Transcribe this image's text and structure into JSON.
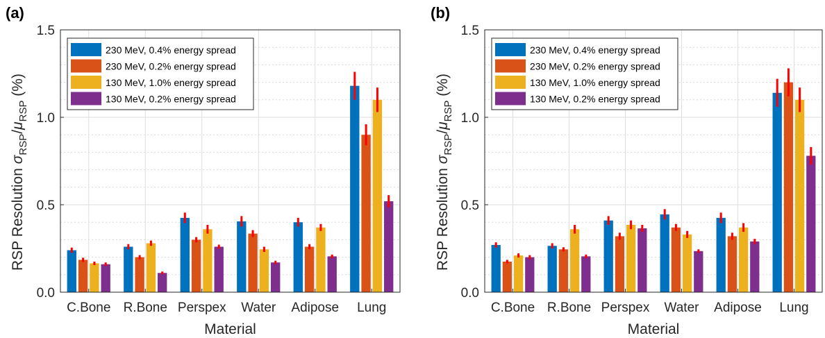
{
  "chart_data": [
    {
      "panel": "(a)",
      "type": "bar",
      "xlabel": "Material",
      "ylabel": "RSP Resolution σ_RSP/μ_RSP (%)",
      "ylabel_parts": {
        "prefix": "RSP Resolution",
        "sigma": "σ",
        "mu": "μ",
        "sub": "RSP",
        "slash": "/",
        "unit": "(%)"
      },
      "ylim": [
        0,
        1.5
      ],
      "yticks": [
        "0.0",
        "0.5",
        "1.0",
        "1.5"
      ],
      "grid": true,
      "legend_position": "top-left",
      "categories": [
        "C.Bone",
        "R.Bone",
        "Perspex",
        "Water",
        "Adipose",
        "Lung"
      ],
      "series": [
        {
          "name": "230 MeV, 0.4% energy spread",
          "color": "#0072BD",
          "values": [
            0.24,
            0.26,
            0.425,
            0.405,
            0.4,
            1.18
          ],
          "errors": [
            0.015,
            0.015,
            0.03,
            0.03,
            0.025,
            0.08
          ]
        },
        {
          "name": "230 MeV, 0.2% energy spread",
          "color": "#D95319",
          "values": [
            0.185,
            0.2,
            0.3,
            0.335,
            0.26,
            0.9
          ],
          "errors": [
            0.012,
            0.012,
            0.015,
            0.02,
            0.015,
            0.06
          ]
        },
        {
          "name": "130 MeV, 1.0% energy spread",
          "color": "#EDB120",
          "values": [
            0.165,
            0.28,
            0.36,
            0.245,
            0.37,
            1.1
          ],
          "errors": [
            0.01,
            0.015,
            0.025,
            0.015,
            0.02,
            0.07
          ]
        },
        {
          "name": "130 MeV, 0.2% energy spread",
          "color": "#7E2F8E",
          "values": [
            0.16,
            0.11,
            0.26,
            0.17,
            0.205,
            0.52
          ],
          "errors": [
            0.01,
            0.008,
            0.012,
            0.01,
            0.01,
            0.035
          ]
        }
      ]
    },
    {
      "panel": "(b)",
      "type": "bar",
      "xlabel": "Material",
      "ylabel": "RSP Resolution σ_RSP/μ_RSP (%)",
      "ylabel_parts": {
        "prefix": "RSP Resolution",
        "sigma": "σ",
        "mu": "μ",
        "sub": "RSP",
        "slash": "/",
        "unit": "(%)"
      },
      "ylim": [
        0,
        1.5
      ],
      "yticks": [
        "0.0",
        "0.5",
        "1.0",
        "1.5"
      ],
      "grid": true,
      "legend_position": "top-left",
      "categories": [
        "C.Bone",
        "R.Bone",
        "Perspex",
        "Water",
        "Adipose",
        "Lung"
      ],
      "series": [
        {
          "name": "230 MeV, 0.4% energy spread",
          "color": "#0072BD",
          "values": [
            0.27,
            0.265,
            0.41,
            0.445,
            0.425,
            1.14
          ],
          "errors": [
            0.015,
            0.015,
            0.025,
            0.03,
            0.03,
            0.08
          ]
        },
        {
          "name": "230 MeV, 0.2% energy spread",
          "color": "#D95319",
          "values": [
            0.175,
            0.245,
            0.32,
            0.37,
            0.32,
            1.2
          ],
          "errors": [
            0.01,
            0.012,
            0.02,
            0.02,
            0.02,
            0.08
          ]
        },
        {
          "name": "130 MeV, 1.0% energy spread",
          "color": "#EDB120",
          "values": [
            0.21,
            0.36,
            0.385,
            0.33,
            0.37,
            1.1
          ],
          "errors": [
            0.012,
            0.025,
            0.025,
            0.02,
            0.025,
            0.07
          ]
        },
        {
          "name": "130 MeV, 0.2% energy spread",
          "color": "#7E2F8E",
          "values": [
            0.2,
            0.205,
            0.365,
            0.235,
            0.29,
            0.78
          ],
          "errors": [
            0.012,
            0.01,
            0.02,
            0.01,
            0.015,
            0.05
          ]
        }
      ]
    }
  ],
  "error_bar_color": "#FF0000"
}
